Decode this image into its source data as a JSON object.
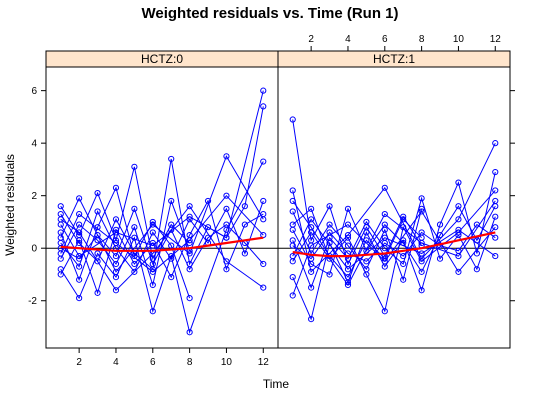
{
  "chart_data": {
    "type": "line",
    "title": "Weighted residuals vs. Time (Run 1)",
    "xlabel": "Time",
    "ylabel": "Weighted residuals",
    "xlim": [
      0.2,
      12.8
    ],
    "ylim": [
      -3.8,
      6.9
    ],
    "x_ticks": [
      "2",
      "4",
      "6",
      "8",
      "10",
      "12"
    ],
    "y_ticks": [
      "-2",
      "0",
      "2",
      "4",
      "6"
    ],
    "reference_line_y": 0,
    "colors": {
      "points": "#0000ff",
      "smooth": "#ff0000",
      "reference": "#000000",
      "strip": "#ffe5cc"
    },
    "panels": [
      {
        "strip_label": "HCTZ:0",
        "smooth": {
          "x": [
            1,
            2,
            3,
            4,
            5,
            6,
            7,
            8,
            9,
            10,
            11,
            12
          ],
          "y": [
            0.05,
            0.0,
            -0.05,
            -0.1,
            -0.1,
            -0.1,
            -0.05,
            0.0,
            0.1,
            0.2,
            0.3,
            0.4
          ]
        },
        "series": [
          {
            "x": [
              1,
              2,
              3,
              4,
              5,
              6,
              7,
              8
            ],
            "y": [
              1.6,
              0.5,
              2.1,
              0.3,
              3.1,
              -0.4,
              0.9,
              0.2
            ]
          },
          {
            "x": [
              1,
              2,
              4,
              6,
              8,
              10,
              12
            ],
            "y": [
              0.9,
              -0.3,
              0.6,
              0.1,
              1.2,
              0.4,
              6.0
            ]
          },
          {
            "x": [
              1,
              2,
              3,
              4,
              5,
              6,
              7,
              8,
              9,
              10,
              11,
              12
            ],
            "y": [
              1.3,
              0.2,
              -0.5,
              1.1,
              -0.2,
              -0.8,
              3.4,
              -0.6,
              0.8,
              0.4,
              1.6,
              5.4
            ]
          },
          {
            "x": [
              1,
              2,
              3,
              4,
              5,
              6,
              7,
              8,
              10,
              12
            ],
            "y": [
              -0.8,
              -1.9,
              -0.2,
              -1.1,
              0.4,
              -2.4,
              -0.3,
              -3.2,
              0.7,
              3.3
            ]
          },
          {
            "x": [
              1,
              2,
              4,
              6,
              8,
              10,
              12
            ],
            "y": [
              0.4,
              1.9,
              -0.9,
              0.9,
              -0.2,
              3.5,
              1.1
            ]
          },
          {
            "x": [
              1,
              2,
              3,
              4,
              5,
              6,
              7,
              8
            ],
            "y": [
              -0.4,
              0.9,
              0.3,
              -0.6,
              0.8,
              -1.4,
              1.8,
              -0.1
            ]
          },
          {
            "x": [
              1,
              2,
              3,
              4,
              5,
              6,
              7,
              8,
              9,
              10,
              11,
              12
            ],
            "y": [
              0.2,
              -0.7,
              1.4,
              0.0,
              -0.9,
              0.6,
              -0.4,
              1.1,
              0.2,
              1.5,
              -0.2,
              1.8
            ]
          },
          {
            "x": [
              1,
              2,
              4,
              6,
              8,
              10,
              12
            ],
            "y": [
              1.1,
              0.6,
              -1.6,
              -0.2,
              1.6,
              -0.5,
              -1.5
            ]
          },
          {
            "x": [
              1,
              2,
              3,
              4,
              5,
              6,
              7,
              8,
              9,
              10,
              11,
              12
            ],
            "y": [
              -1.0,
              0.3,
              -1.7,
              0.7,
              -0.6,
              0.2,
              -1.1,
              0.5,
              1.8,
              -0.8,
              0.9,
              1.3
            ]
          },
          {
            "x": [
              1,
              2,
              3,
              4,
              5,
              6,
              7,
              8
            ],
            "y": [
              0.6,
              -1.2,
              0.8,
              2.3,
              -0.3,
              1.0,
              0.1,
              -1.9
            ]
          },
          {
            "x": [
              1,
              2,
              4,
              6,
              8,
              10,
              12
            ],
            "y": [
              -0.2,
              1.3,
              0.2,
              -0.9,
              0.3,
              2.0,
              0.5
            ]
          },
          {
            "x": [
              1,
              2,
              3,
              4,
              5,
              6,
              7,
              8,
              9,
              10,
              11,
              12
            ],
            "y": [
              0.0,
              -0.4,
              0.5,
              -0.3,
              1.5,
              -0.6,
              0.7,
              -0.8,
              0.4,
              0.9,
              0.2,
              -0.6
            ]
          }
        ]
      },
      {
        "strip_label": "HCTZ:1",
        "smooth": {
          "x": [
            1,
            2,
            3,
            4,
            5,
            6,
            7,
            8,
            9,
            10,
            11,
            12
          ],
          "y": [
            -0.15,
            -0.25,
            -0.3,
            -0.3,
            -0.25,
            -0.2,
            -0.1,
            0.0,
            0.15,
            0.3,
            0.45,
            0.6
          ]
        },
        "series": [
          {
            "x": [
              1,
              2,
              3,
              4,
              5,
              6,
              7,
              8
            ],
            "y": [
              4.9,
              0.3,
              1.6,
              -0.6,
              0.8,
              -0.3,
              1.2,
              0.1
            ]
          },
          {
            "x": [
              1,
              2,
              4,
              6,
              8,
              10,
              12
            ],
            "y": [
              2.2,
              -0.9,
              0.5,
              2.3,
              -0.4,
              1.1,
              4.0
            ]
          },
          {
            "x": [
              1,
              2,
              3,
              4,
              5,
              6,
              7,
              8,
              9,
              10,
              11,
              12
            ],
            "y": [
              -1.1,
              -2.7,
              0.2,
              -1.3,
              0.6,
              -0.7,
              0.3,
              -1.6,
              0.9,
              2.5,
              -0.2,
              2.9
            ]
          },
          {
            "x": [
              1,
              2,
              3,
              4,
              5,
              6,
              7,
              8,
              10,
              12
            ],
            "y": [
              0.9,
              1.5,
              -0.4,
              0.4,
              -1.0,
              -2.4,
              0.8,
              -0.5,
              0.6,
              2.2
            ]
          },
          {
            "x": [
              1,
              2,
              4,
              6,
              8,
              10,
              12
            ],
            "y": [
              -0.5,
              0.6,
              -1.4,
              1.3,
              0.2,
              -0.3,
              1.8
            ]
          },
          {
            "x": [
              1,
              2,
              3,
              4,
              5,
              6,
              7,
              8
            ],
            "y": [
              1.4,
              -0.2,
              0.9,
              0.1,
              -0.8,
              0.7,
              -1.2,
              1.5
            ]
          },
          {
            "x": [
              1,
              2,
              3,
              4,
              5,
              6,
              7,
              8,
              9,
              10,
              11,
              12
            ],
            "y": [
              0.3,
              -1.5,
              0.4,
              -0.4,
              1.0,
              0.0,
              -0.6,
              1.9,
              -0.4,
              0.5,
              -0.8,
              1.2
            ]
          },
          {
            "x": [
              1,
              2,
              4,
              6,
              8,
              10,
              12
            ],
            "y": [
              -1.8,
              0.1,
              0.9,
              -0.5,
              1.4,
              -0.9,
              0.8
            ]
          },
          {
            "x": [
              1,
              2,
              3,
              4,
              5,
              6,
              7,
              8,
              9,
              10,
              11,
              12
            ],
            "y": [
              0.7,
              -0.6,
              -1.0,
              1.5,
              -0.1,
              0.9,
              0.2,
              -0.9,
              0.5,
              1.6,
              0.3,
              1.6
            ]
          },
          {
            "x": [
              1,
              2,
              3,
              4,
              5,
              6,
              7,
              8
            ],
            "y": [
              1.8,
              0.8,
              -0.3,
              -1.1,
              0.3,
              -0.4,
              1.1,
              0.4
            ]
          },
          {
            "x": [
              1,
              2,
              4,
              6,
              8,
              10,
              12
            ],
            "y": [
              -0.3,
              1.1,
              -0.8,
              0.4,
              -0.2,
              0.7,
              -0.3
            ]
          },
          {
            "x": [
              1,
              2,
              3,
              4,
              5,
              6,
              7,
              8,
              9,
              10,
              11,
              12
            ],
            "y": [
              0.1,
              -0.4,
              0.6,
              -0.2,
              -0.5,
              0.2,
              -0.3,
              0.6,
              0.1,
              -0.1,
              0.9,
              0.4
            ]
          }
        ]
      }
    ]
  }
}
